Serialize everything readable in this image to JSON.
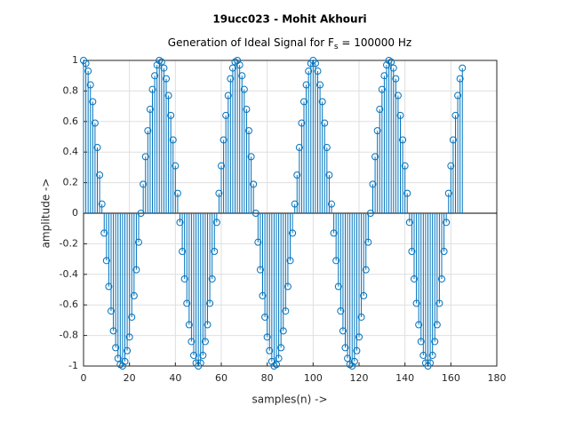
{
  "chart_data": {
    "type": "stem",
    "title": "19ucc023 - Mohit Akhouri",
    "subtitle": [
      "Generation of Ideal Signal for F",
      "s",
      " = 100000 Hz"
    ],
    "x_label": "samples(n) ->",
    "y_label": "amplitude ->",
    "xlim": [
      0,
      180
    ],
    "xticks": [
      0,
      20,
      40,
      60,
      80,
      100,
      120,
      140,
      160,
      180
    ],
    "ylim": [
      -1,
      1
    ],
    "yticks": [
      -1,
      -0.8,
      -0.6,
      -0.4,
      -0.2,
      0,
      0.2,
      0.4,
      0.6,
      0.8,
      1
    ],
    "grid": true,
    "color": "#0072bd",
    "x": [
      0,
      1,
      2,
      3,
      4,
      5,
      6,
      7,
      8,
      9,
      10,
      11,
      12,
      13,
      14,
      15,
      16,
      17,
      18,
      19,
      20,
      21,
      22,
      23,
      24,
      25,
      26,
      27,
      28,
      29,
      30,
      31,
      32,
      33,
      34,
      35,
      36,
      37,
      38,
      39,
      40,
      41,
      42,
      43,
      44,
      45,
      46,
      47,
      48,
      49,
      50,
      51,
      52,
      53,
      54,
      55,
      56,
      57,
      58,
      59,
      60,
      61,
      62,
      63,
      64,
      65,
      66,
      67,
      68,
      69,
      70,
      71,
      72,
      73,
      74,
      75,
      76,
      77,
      78,
      79,
      80,
      81,
      82,
      83,
      84,
      85,
      86,
      87,
      88,
      89,
      90,
      91,
      92,
      93,
      94,
      95,
      96,
      97,
      98,
      99,
      100,
      101,
      102,
      103,
      104,
      105,
      106,
      107,
      108,
      109,
      110,
      111,
      112,
      113,
      114,
      115,
      116,
      117,
      118,
      119,
      120,
      121,
      122,
      123,
      124,
      125,
      126,
      127,
      128,
      129,
      130,
      131,
      132,
      133,
      134,
      135,
      136,
      137,
      138,
      139,
      140,
      141,
      142,
      143,
      144,
      145,
      146,
      147,
      148,
      149,
      150,
      151,
      152,
      153,
      154,
      155,
      156,
      157,
      158,
      159,
      160,
      161,
      162,
      163,
      164,
      165
    ],
    "values": [
      1,
      0.98,
      0.93,
      0.84,
      0.73,
      0.59,
      0.43,
      0.25,
      0.06,
      -0.13,
      -0.31,
      -0.48,
      -0.64,
      -0.77,
      -0.88,
      -0.95,
      -0.99,
      -1,
      -0.97,
      -0.9,
      -0.81,
      -0.68,
      -0.54,
      -0.37,
      -0.19,
      0,
      0.19,
      0.37,
      0.54,
      0.68,
      0.81,
      0.9,
      0.97,
      1,
      0.99,
      0.95,
      0.88,
      0.77,
      0.64,
      0.48,
      0.31,
      0.13,
      -0.06,
      -0.25,
      -0.43,
      -0.59,
      -0.73,
      -0.84,
      -0.93,
      -0.98,
      -1,
      -0.98,
      -0.93,
      -0.84,
      -0.73,
      -0.59,
      -0.43,
      -0.25,
      -0.06,
      0.13,
      0.31,
      0.48,
      0.64,
      0.77,
      0.88,
      0.95,
      0.99,
      1,
      0.97,
      0.9,
      0.81,
      0.68,
      0.54,
      0.37,
      0.19,
      0,
      -0.19,
      -0.37,
      -0.54,
      -0.68,
      -0.81,
      -0.9,
      -0.97,
      -1,
      -0.99,
      -0.95,
      -0.88,
      -0.77,
      -0.64,
      -0.48,
      -0.31,
      -0.13,
      0.06,
      0.25,
      0.43,
      0.59,
      0.73,
      0.84,
      0.93,
      0.98,
      1,
      0.98,
      0.93,
      0.84,
      0.73,
      0.59,
      0.43,
      0.25,
      0.06,
      -0.13,
      -0.31,
      -0.48,
      -0.64,
      -0.77,
      -0.88,
      -0.95,
      -0.99,
      -1,
      -0.97,
      -0.9,
      -0.81,
      -0.68,
      -0.54,
      -0.37,
      -0.19,
      0,
      0.19,
      0.37,
      0.54,
      0.68,
      0.81,
      0.9,
      0.97,
      1,
      0.99,
      0.95,
      0.88,
      0.77,
      0.64,
      0.48,
      0.31,
      0.13,
      -0.06,
      -0.25,
      -0.43,
      -0.59,
      -0.73,
      -0.84,
      -0.93,
      -0.98,
      -1,
      -0.98,
      -0.93,
      -0.84,
      -0.73,
      -0.59,
      -0.43,
      -0.25,
      -0.06,
      0.13,
      0.31,
      0.48,
      0.64,
      0.77,
      0.88,
      0.95
    ]
  }
}
